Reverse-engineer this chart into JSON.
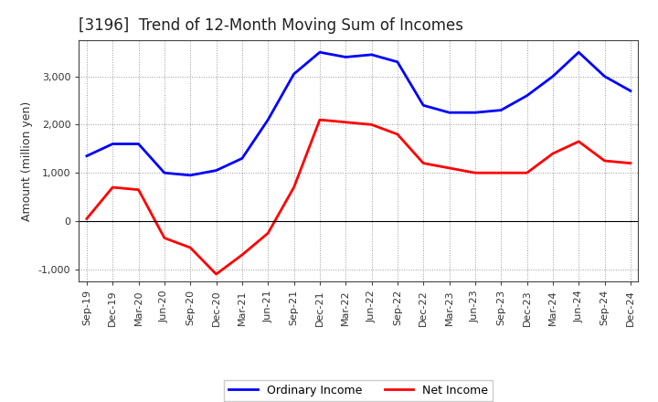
{
  "title": "[3196]  Trend of 12-Month Moving Sum of Incomes",
  "ylabel": "Amount (million yen)",
  "x_labels": [
    "Sep-19",
    "Dec-19",
    "Mar-20",
    "Jun-20",
    "Sep-20",
    "Dec-20",
    "Mar-21",
    "Jun-21",
    "Sep-21",
    "Dec-21",
    "Mar-22",
    "Jun-22",
    "Sep-22",
    "Dec-22",
    "Mar-23",
    "Jun-23",
    "Sep-23",
    "Dec-23",
    "Mar-24",
    "Jun-24",
    "Sep-24",
    "Dec-24"
  ],
  "ordinary_income": [
    1350,
    1600,
    1600,
    1000,
    950,
    1050,
    1300,
    2100,
    3050,
    3500,
    3400,
    3450,
    3300,
    2400,
    2250,
    2250,
    2300,
    2600,
    3000,
    3500,
    3000,
    2700
  ],
  "net_income": [
    50,
    700,
    650,
    -350,
    -550,
    -1100,
    -700,
    -250,
    700,
    2100,
    2050,
    2000,
    1800,
    1200,
    1100,
    1000,
    1000,
    1000,
    1400,
    1650,
    1250,
    1200
  ],
  "ordinary_color": "#0000FF",
  "net_color": "#FF0000",
  "ylim_min": -1250,
  "ylim_max": 3750,
  "yticks": [
    -1000,
    0,
    1000,
    2000,
    3000
  ],
  "background_color": "#FFFFFF",
  "plot_bg_color": "#FFFFFF",
  "grid_color": "#999999",
  "line_width": 2.0,
  "title_fontsize": 12,
  "tick_fontsize": 8,
  "ylabel_fontsize": 9,
  "legend_labels": [
    "Ordinary Income",
    "Net Income"
  ],
  "legend_fontsize": 9
}
